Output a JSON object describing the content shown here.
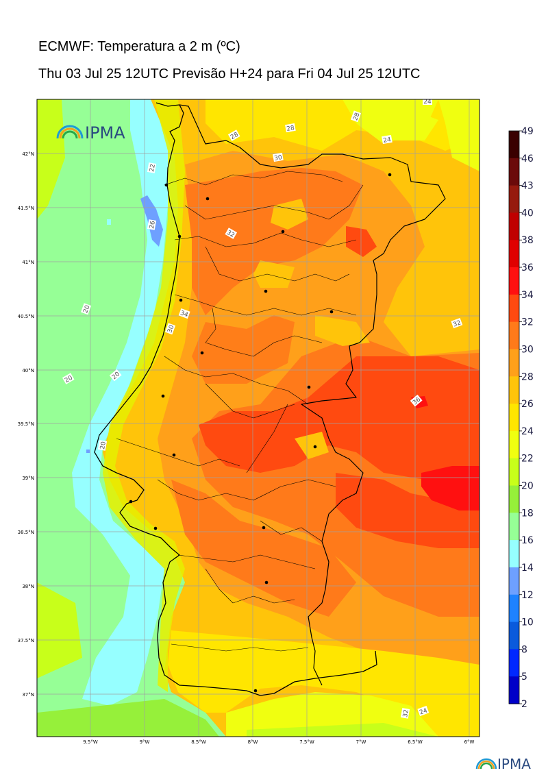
{
  "header": {
    "title": "ECMWF: Temperatura a 2 m (ºC)",
    "subtitle": "Thu 03 Jul 25 12UTC Previsão H+24 para Fri 04 Jul 25 12UTC"
  },
  "logo": {
    "text": "IPMA"
  },
  "map": {
    "lon_range": [
      -10.0,
      -5.9
    ],
    "lat_range": [
      36.6,
      42.5
    ],
    "lon_ticks": [
      "9.5°W",
      "9°W",
      "8.5°W",
      "8°W",
      "7.5°W",
      "7°W",
      "6.5°W",
      "6°W"
    ],
    "lat_ticks": [
      "42°N",
      "41.5°N",
      "41°N",
      "40.5°N",
      "40°N",
      "39.5°N",
      "39°N",
      "38.5°N",
      "38°N",
      "37.5°N",
      "37°N"
    ],
    "contour_labels": [
      "20",
      "20",
      "20",
      "20",
      "22",
      "24",
      "24",
      "24",
      "26",
      "28",
      "28",
      "28",
      "30",
      "30",
      "32",
      "32",
      "32",
      "34",
      "36"
    ]
  },
  "colorbar": {
    "levels": [
      "49",
      "46",
      "43",
      "40",
      "38",
      "36",
      "34",
      "32",
      "30",
      "28",
      "26",
      "24",
      "22",
      "20",
      "18",
      "16",
      "14",
      "12",
      "10",
      "8",
      "5",
      "2"
    ],
    "colors": [
      "#3a0000",
      "#6b0a0a",
      "#961a0e",
      "#c00000",
      "#e00000",
      "#ff1010",
      "#ff4a10",
      "#ff7a1a",
      "#ffa01a",
      "#ffc40a",
      "#ffe600",
      "#f0ff10",
      "#c8ff1a",
      "#96f03a",
      "#96ff96",
      "#96ffff",
      "#6ea0ff",
      "#1e82ff",
      "#0a5adc",
      "#0028ff",
      "#0000c8",
      "#7a10ff",
      "#d000ff"
    ]
  }
}
